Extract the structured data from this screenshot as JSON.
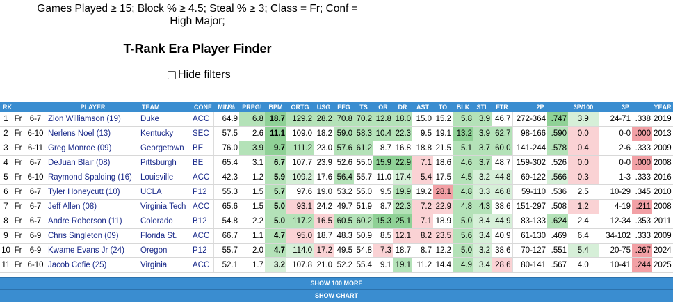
{
  "filters": {
    "line1": "Games Played ≥ 15; Block % ≥ 4.5; Steal % ≥ 3; Class = Fr; Conf =",
    "line2": "High Major;"
  },
  "title": "T-Rank Era Player Finder",
  "hide_filters_label": "Hide filters",
  "hide_filters_checked": false,
  "columns": [
    "RK",
    "",
    "",
    "PLAYER",
    "TEAM",
    "CONF",
    "MIN%",
    "PRPG!",
    "BPM",
    "ORTG",
    "USG",
    "EFG",
    "TS",
    "OR",
    "DR",
    "AST",
    "TO",
    "BLK",
    "STL",
    "FTR",
    "2P",
    "",
    "3P/100",
    "3P",
    "",
    "YEAR"
  ],
  "colors": {
    "header": "#3a8dd0",
    "green_strong": "#8fd196",
    "green_mid": "#b4e2b8",
    "green_light": "#d6efd8",
    "red_strong": "#f2a0a5",
    "red_light": "#fad2d4"
  },
  "rows": [
    {
      "rk": "1",
      "cls": "Fr",
      "ht": "6-7",
      "player": "Zion Williamson (19)",
      "team": "Duke",
      "conf": "ACC",
      "min": "64.9",
      "prpg": "6.8",
      "bpm": "18.7",
      "ortg": "129.2",
      "usg": "28.2",
      "efg": "70.8",
      "ts": "70.2",
      "or": "12.8",
      "dr": "18.0",
      "ast": "15.0",
      "to": "15.2",
      "blk": "5.8",
      "stl": "3.9",
      "ftr": "46.7",
      "twop": "272-364",
      "twopct": ".747",
      "three100": "3.9",
      "threep": "24-71",
      "threepct": ".338",
      "year": "2019"
    },
    {
      "rk": "2",
      "cls": "Fr",
      "ht": "6-10",
      "player": "Nerlens Noel (13)",
      "team": "Kentucky",
      "conf": "SEC",
      "min": "57.5",
      "prpg": "2.6",
      "bpm": "11.1",
      "ortg": "109.0",
      "usg": "18.2",
      "efg": "59.0",
      "ts": "58.3",
      "or": "10.4",
      "dr": "22.3",
      "ast": "9.5",
      "to": "19.1",
      "blk": "13.2",
      "stl": "3.9",
      "ftr": "62.7",
      "twop": "98-166",
      "twopct": ".590",
      "three100": "0.0",
      "threep": "0-0",
      "threepct": ".000",
      "year": "2013"
    },
    {
      "rk": "3",
      "cls": "Fr",
      "ht": "6-11",
      "player": "Greg Monroe (09)",
      "team": "Georgetown",
      "conf": "BE",
      "min": "76.0",
      "prpg": "3.9",
      "bpm": "9.7",
      "ortg": "111.2",
      "usg": "23.0",
      "efg": "57.6",
      "ts": "61.2",
      "or": "8.7",
      "dr": "16.8",
      "ast": "18.8",
      "to": "21.5",
      "blk": "5.1",
      "stl": "3.7",
      "ftr": "60.0",
      "twop": "141-244",
      "twopct": ".578",
      "three100": "0.4",
      "threep": "2-6",
      "threepct": ".333",
      "year": "2009"
    },
    {
      "rk": "4",
      "cls": "Fr",
      "ht": "6-7",
      "player": "DeJuan Blair (08)",
      "team": "Pittsburgh",
      "conf": "BE",
      "min": "65.4",
      "prpg": "3.1",
      "bpm": "6.7",
      "ortg": "107.7",
      "usg": "23.9",
      "efg": "52.6",
      "ts": "55.0",
      "or": "15.9",
      "dr": "22.9",
      "ast": "7.1",
      "to": "18.6",
      "blk": "4.6",
      "stl": "3.7",
      "ftr": "48.7",
      "twop": "159-302",
      "twopct": ".526",
      "three100": "0.0",
      "threep": "0-0",
      "threepct": ".000",
      "year": "2008"
    },
    {
      "rk": "5",
      "cls": "Fr",
      "ht": "6-10",
      "player": "Raymond Spalding (16)",
      "team": "Louisville",
      "conf": "ACC",
      "min": "42.3",
      "prpg": "1.2",
      "bpm": "5.9",
      "ortg": "109.2",
      "usg": "17.6",
      "efg": "56.4",
      "ts": "55.7",
      "or": "11.0",
      "dr": "17.4",
      "ast": "5.4",
      "to": "17.5",
      "blk": "4.5",
      "stl": "3.2",
      "ftr": "44.8",
      "twop": "69-122",
      "twopct": ".566",
      "three100": "0.3",
      "threep": "1-3",
      "threepct": ".333",
      "year": "2016"
    },
    {
      "rk": "6",
      "cls": "Fr",
      "ht": "6-7",
      "player": "Tyler Honeycutt (10)",
      "team": "UCLA",
      "conf": "P12",
      "min": "55.3",
      "prpg": "1.5",
      "bpm": "5.7",
      "ortg": "97.6",
      "usg": "19.0",
      "efg": "53.2",
      "ts": "55.0",
      "or": "9.5",
      "dr": "19.9",
      "ast": "19.2",
      "to": "28.1",
      "blk": "4.8",
      "stl": "3.3",
      "ftr": "46.8",
      "twop": "59-110",
      "twopct": ".536",
      "three100": "2.5",
      "threep": "10-29",
      "threepct": ".345",
      "year": "2010"
    },
    {
      "rk": "7",
      "cls": "Fr",
      "ht": "6-7",
      "player": "Jeff Allen (08)",
      "team": "Virginia Tech",
      "conf": "ACC",
      "min": "65.6",
      "prpg": "1.5",
      "bpm": "5.0",
      "ortg": "93.1",
      "usg": "24.2",
      "efg": "49.7",
      "ts": "51.9",
      "or": "8.7",
      "dr": "22.3",
      "ast": "7.2",
      "to": "22.9",
      "blk": "4.8",
      "stl": "4.3",
      "ftr": "38.6",
      "twop": "151-297",
      "twopct": ".508",
      "three100": "1.2",
      "threep": "4-19",
      "threepct": ".211",
      "year": "2008"
    },
    {
      "rk": "8",
      "cls": "Fr",
      "ht": "6-7",
      "player": "Andre Roberson (11)",
      "team": "Colorado",
      "conf": "B12",
      "min": "54.8",
      "prpg": "2.2",
      "bpm": "5.0",
      "ortg": "117.2",
      "usg": "16.5",
      "efg": "60.5",
      "ts": "60.2",
      "or": "15.3",
      "dr": "25.1",
      "ast": "7.1",
      "to": "18.9",
      "blk": "5.0",
      "stl": "3.4",
      "ftr": "44.9",
      "twop": "83-133",
      "twopct": ".624",
      "three100": "2.4",
      "threep": "12-34",
      "threepct": ".353",
      "year": "2011"
    },
    {
      "rk": "9",
      "cls": "Fr",
      "ht": "6-9",
      "player": "Chris Singleton (09)",
      "team": "Florida St.",
      "conf": "ACC",
      "min": "66.7",
      "prpg": "1.1",
      "bpm": "4.7",
      "ortg": "95.0",
      "usg": "18.7",
      "efg": "48.3",
      "ts": "50.9",
      "or": "8.5",
      "dr": "12.1",
      "ast": "8.2",
      "to": "23.5",
      "blk": "5.6",
      "stl": "3.4",
      "ftr": "40.9",
      "twop": "61-130",
      "twopct": ".469",
      "three100": "6.4",
      "threep": "34-102",
      "threepct": ".333",
      "year": "2009"
    },
    {
      "rk": "10",
      "cls": "Fr",
      "ht": "6-9",
      "player": "Kwame Evans Jr (24)",
      "team": "Oregon",
      "conf": "P12",
      "min": "55.7",
      "prpg": "2.0",
      "bpm": "4.7",
      "ortg": "114.0",
      "usg": "17.2",
      "efg": "49.5",
      "ts": "54.8",
      "or": "7.3",
      "dr": "18.7",
      "ast": "8.7",
      "to": "12.2",
      "blk": "5.0",
      "stl": "3.2",
      "ftr": "38.6",
      "twop": "70-127",
      "twopct": ".551",
      "three100": "5.4",
      "threep": "20-75",
      "threepct": ".267",
      "year": "2024"
    },
    {
      "rk": "11",
      "cls": "Fr",
      "ht": "6-10",
      "player": "Jacob Cofie (25)",
      "team": "Virginia",
      "conf": "ACC",
      "min": "52.1",
      "prpg": "1.7",
      "bpm": "3.2",
      "ortg": "107.8",
      "usg": "21.0",
      "efg": "52.2",
      "ts": "55.4",
      "or": "9.1",
      "dr": "19.1",
      "ast": "11.2",
      "to": "14.4",
      "blk": "4.9",
      "stl": "3.4",
      "ftr": "28.6",
      "twop": "80-141",
      "twopct": ".567",
      "three100": "4.0",
      "threep": "10-41",
      "threepct": ".244",
      "year": "2025"
    }
  ],
  "show_more_label": "SHOW 100 MORE",
  "show_chart_label": "SHOW CHART"
}
